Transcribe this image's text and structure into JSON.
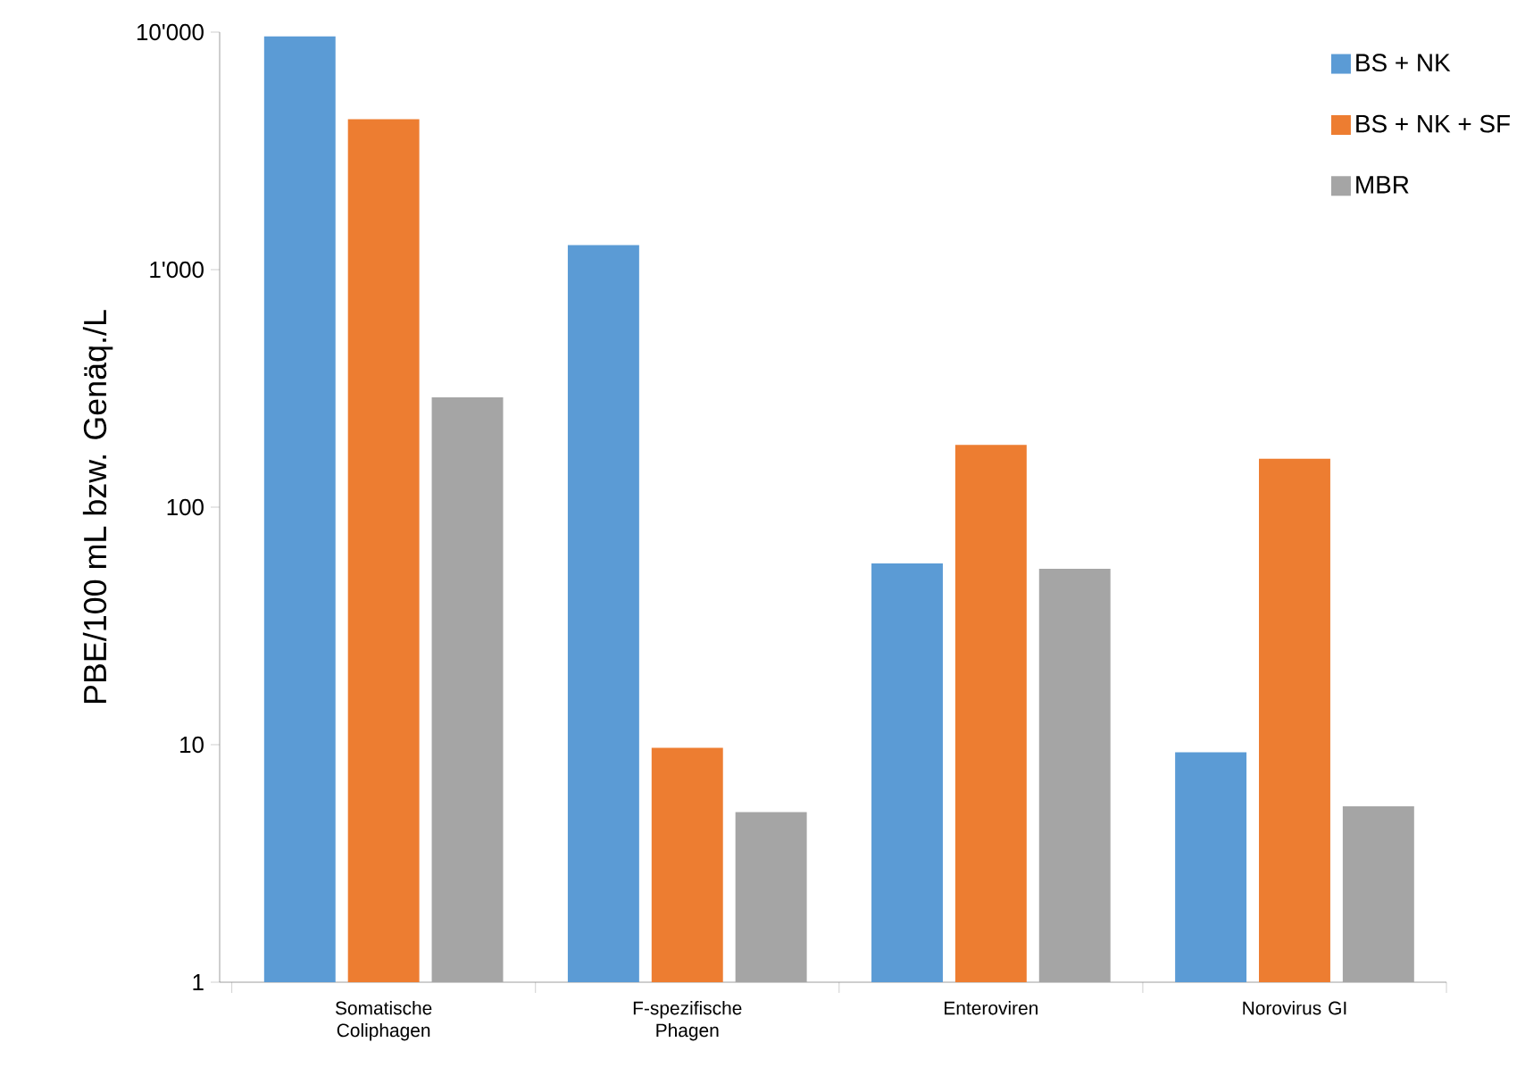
{
  "chart_data": {
    "type": "bar",
    "ylabel": "PBE/100 mL bzw. Genäq./L",
    "categories": [
      "Somatische Coliphagen",
      "F-spezifische Phagen",
      "Enteroviren",
      "Norovirus GI"
    ],
    "series": [
      {
        "name": "BS + NK",
        "color": "#5b9bd5",
        "values": [
          9600,
          1270,
          58,
          9.3
        ]
      },
      {
        "name": "BS + NK + SF",
        "color": "#ed7d31",
        "values": [
          4300,
          9.7,
          183,
          160
        ]
      },
      {
        "name": "MBR",
        "color": "#a5a5a5",
        "values": [
          290,
          5.2,
          55,
          5.5
        ]
      }
    ],
    "log": "y",
    "ylim": [
      1,
      10000
    ],
    "yticks": [
      1,
      10,
      100,
      {
        "value": 1000,
        "label": "1'000"
      },
      {
        "value": 10000,
        "label": "10'000"
      }
    ],
    "grid": false,
    "legend": "top right"
  }
}
